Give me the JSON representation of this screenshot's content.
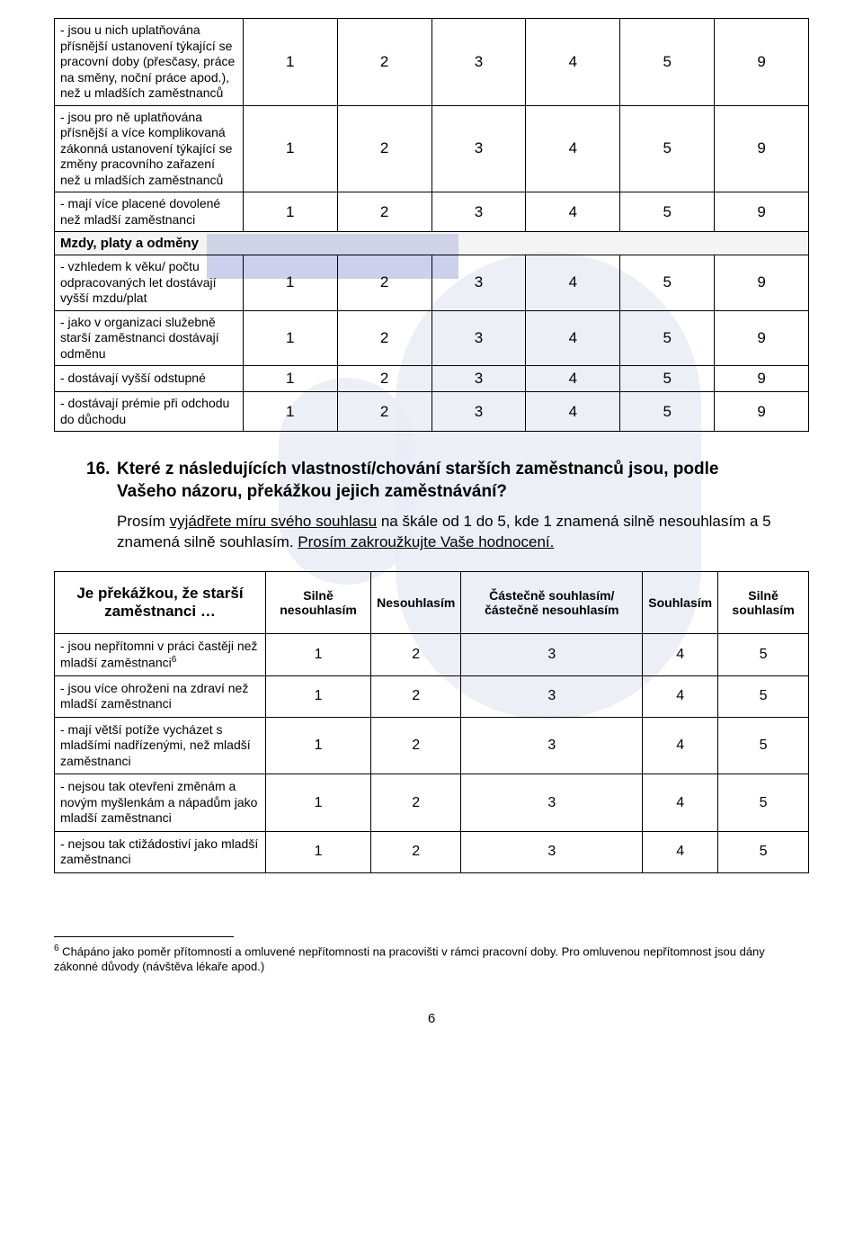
{
  "table1": {
    "scale": [
      "1",
      "2",
      "3",
      "4",
      "5",
      "9"
    ],
    "rows": [
      {
        "label": "- jsou u nich uplatňována přísnější ustanovení týkající se pracovní doby (přesčasy, práce na směny, noční práce apod.), než u mladších zaměstnanců"
      },
      {
        "label": "- jsou pro ně uplatňována přísnější a více komplikovaná zákonná ustanovení týkající se změny pracovního zařazení než u mladších zaměstnanců"
      },
      {
        "label": "- mají více placené dovolené než mladší zaměstnanci"
      }
    ],
    "section": "Mzdy, platy a odměny",
    "rows2": [
      {
        "label": "- vzhledem k věku/ počtu odpracovaných let dostávají vyšší mzdu/plat"
      },
      {
        "label": "- jako v organizaci služebně starší zaměstnanci dostávají odměnu"
      },
      {
        "label": "- dostávají vyšší odstupné"
      },
      {
        "label": "- dostávají prémie při odchodu do důchodu"
      }
    ]
  },
  "question": {
    "number": "16.",
    "title": "Které z následujících vlastností/chování starších zaměstnanců jsou, podle Vašeho názoru, překážkou jejich zaměstnávání?",
    "body_pre": "Prosím ",
    "body_u1": "vyjádřete míru svého souhlasu",
    "body_mid": " na škále od 1 do 5, kde 1 znamená silně nesouhlasím a 5 znamená silně souhlasím. ",
    "body_u2": "Prosím zakroužkujte Vaše hodnocení."
  },
  "table2": {
    "header_row": "Je překážkou, že starší zaměstnanci …",
    "headers": [
      "Silně nesouhlasím",
      "Nesouhlasím",
      "Částečně souhlasím/ částečně nesouhlasím",
      "Souhlasím",
      "Silně souhlasím"
    ],
    "scale": [
      "1",
      "2",
      "3",
      "4",
      "5"
    ],
    "rows": [
      {
        "label": "- jsou nepřítomni v práci častěji než mladší zaměstnanci",
        "fn": "6"
      },
      {
        "label": "- jsou více ohroženi na zdraví než mladší zaměstnanci"
      },
      {
        "label": "- mají větší potíže vycházet s mladšími nadřízenými, než mladší zaměstnanci"
      },
      {
        "label": "- nejsou tak otevřeni změnám a novým myšlenkám a nápadům jako mladší zaměstnanci"
      },
      {
        "label": "- nejsou tak ctižádostiví jako mladší zaměstnanci"
      }
    ]
  },
  "footnote": {
    "num": "6",
    "text": " Chápáno jako poměr přítomnosti a omluvené nepřítomnosti na pracovišti v rámci pracovní doby. Pro omluvenou nepřítomnost jsou dány zákonné důvody (návštěva lékaře apod.)"
  },
  "pagenum": "6"
}
